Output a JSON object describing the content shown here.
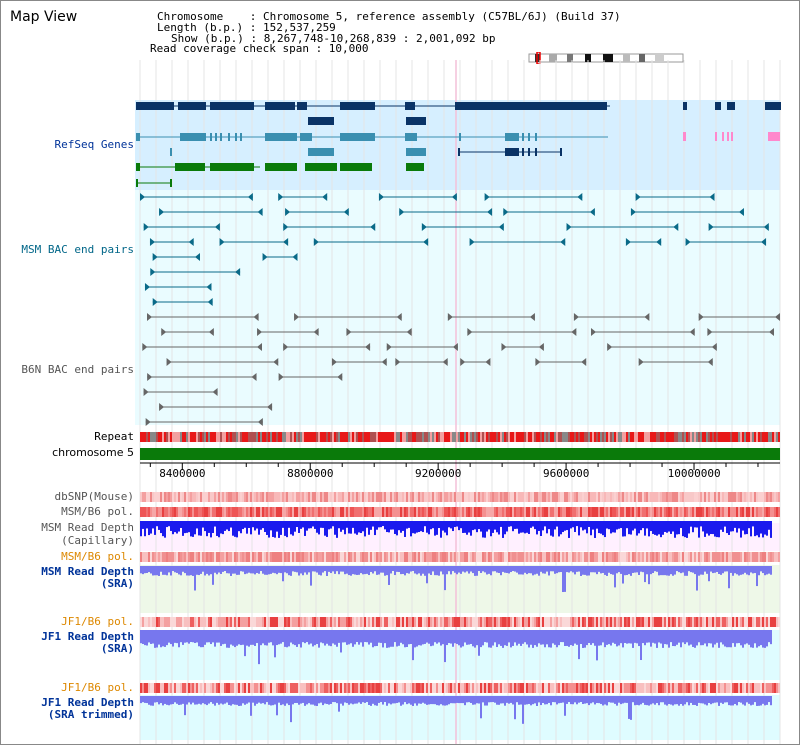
{
  "header": {
    "title": "Map View",
    "info_lines": [
      "Chromosome    : Chromosome 5, reference assembly (C57BL/6J) (Build 37)",
      "Length (b.p.) : 152,537,259",
      "Show (b.p.) : 8,267,748-10,268,839 : 2,001,092 bp",
      "Read coverage check span : 10,000"
    ]
  },
  "tracks": {
    "refseq": "RefSeq Genes",
    "msm_bac": "MSM BAC end pairs",
    "b6n_bac": "B6N BAC end pairs",
    "repeat": "Repeat",
    "chromosome": "chromosome 5",
    "dbsnp": "dbSNP(Mouse)",
    "msm_pol": "MSM/B6 pol.",
    "msm_depth_cap_1": "MSM Read Depth",
    "msm_depth_cap_2": "(Capillary)",
    "msm_pol_2": "MSM/B6 pol.",
    "msm_depth_sra_1": "MSM Read Depth",
    "msm_depth_sra_2": "(SRA)",
    "jf1_pol": "JF1/B6 pol.",
    "jf1_depth_sra_1": "JF1 Read Depth",
    "jf1_depth_sra_2": "(SRA)",
    "jf1_pol_2": "JF1/B6 pol.",
    "jf1_depth_trim_1": "JF1 Read Depth",
    "jf1_depth_trim_2": "(SRA trimmed)"
  },
  "axis": {
    "ticks": [
      "8400000",
      "8800000",
      "9200000",
      "9600000",
      "10000000"
    ],
    "tick_values": [
      8400000,
      8800000,
      9200000,
      9600000,
      10000000
    ]
  },
  "colors": {
    "gene_dark": "#0a3366",
    "gene_mid": "#3a8fb0",
    "gene_green": "#0a7a0a",
    "gene_pink": "#ff88cc",
    "refseq_bg": "#d6efff",
    "bac_bg": "#eafcff",
    "msm_bac": "#0a6a88",
    "b6n_bac": "#666666",
    "chrom_bar": "#0a7a0a",
    "depth_blue": "#1a1aee",
    "depth_sra": "#7777ee",
    "pol_red": "#ee2222",
    "label_blue": "#003399",
    "label_teal": "#006688",
    "label_orange": "#dd8800",
    "label_gray": "#555555"
  }
}
